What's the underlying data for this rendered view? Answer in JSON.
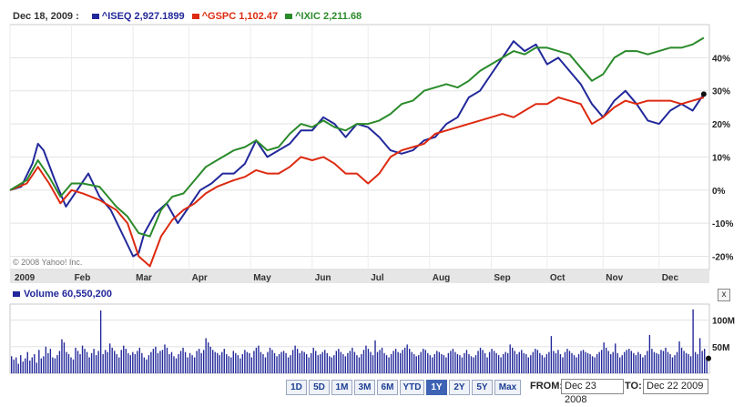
{
  "legend": {
    "date": "Dec 18, 2009 :",
    "items": [
      {
        "label": "^ISEQ 2,927.1899",
        "color": "#22289a"
      },
      {
        "label": "^GSPC 1,102.47",
        "color": "#dd2a10"
      },
      {
        "label": "^IXIC 2,211.68",
        "color": "#2a8a2a"
      }
    ]
  },
  "copyright": "© 2008 Yahoo! Inc.",
  "volume_legend": {
    "label": "Volume 60,550,200",
    "color": "#22289a"
  },
  "close_label": "x",
  "range_buttons": [
    {
      "label": "1D",
      "active": false
    },
    {
      "label": "5D",
      "active": false
    },
    {
      "label": "1M",
      "active": false
    },
    {
      "label": "3M",
      "active": false
    },
    {
      "label": "6M",
      "active": false
    },
    {
      "label": "YTD",
      "active": false
    },
    {
      "label": "1Y",
      "active": true
    },
    {
      "label": "2Y",
      "active": false
    },
    {
      "label": "5Y",
      "active": false
    },
    {
      "label": "Max",
      "active": false
    }
  ],
  "date_range": {
    "from_label": "FROM:",
    "from_value": "Dec 23 2008",
    "to_label": "TO:",
    "to_value": "Dec 22 2009"
  },
  "chart_data": [
    {
      "type": "line",
      "ylabel_unit": "%",
      "ylim": [
        -24,
        50
      ],
      "yticks": [
        {
          "value": 40,
          "label": "40%"
        },
        {
          "value": 30,
          "label": "30%"
        },
        {
          "value": 20,
          "label": "20%"
        },
        {
          "value": 10,
          "label": "10%"
        },
        {
          "value": 0,
          "label": "0%"
        },
        {
          "value": -10,
          "label": "-10%"
        },
        {
          "value": -20,
          "label": "-20%"
        }
      ],
      "x_axis_labels": [
        {
          "label": "2009",
          "x": 0
        },
        {
          "label": "Feb",
          "x": 1.1
        },
        {
          "label": "Mar",
          "x": 2.2
        },
        {
          "label": "Apr",
          "x": 3.2
        },
        {
          "label": "May",
          "x": 4.3
        },
        {
          "label": "Jun",
          "x": 5.4
        },
        {
          "label": "Jul",
          "x": 6.4
        },
        {
          "label": "Aug",
          "x": 7.5
        },
        {
          "label": "Sep",
          "x": 8.6
        },
        {
          "label": "Oct",
          "x": 9.6
        },
        {
          "label": "Nov",
          "x": 10.6
        },
        {
          "label": "Dec",
          "x": 11.6
        }
      ],
      "x_range": [
        0,
        12.5
      ],
      "grid": true,
      "series": [
        {
          "name": "^ISEQ",
          "color": "#22289a",
          "points": [
            [
              0,
              0
            ],
            [
              0.2,
              1
            ],
            [
              0.4,
              8
            ],
            [
              0.5,
              14
            ],
            [
              0.6,
              12
            ],
            [
              0.8,
              3
            ],
            [
              1.0,
              -5
            ],
            [
              1.2,
              0
            ],
            [
              1.4,
              5
            ],
            [
              1.6,
              -2
            ],
            [
              1.8,
              -6
            ],
            [
              2.0,
              -13
            ],
            [
              2.2,
              -20
            ],
            [
              2.3,
              -19
            ],
            [
              2.4,
              -13
            ],
            [
              2.6,
              -7
            ],
            [
              2.8,
              -4
            ],
            [
              3.0,
              -10
            ],
            [
              3.2,
              -5
            ],
            [
              3.4,
              0
            ],
            [
              3.6,
              2
            ],
            [
              3.8,
              5
            ],
            [
              4.0,
              5
            ],
            [
              4.2,
              8
            ],
            [
              4.4,
              15
            ],
            [
              4.6,
              10
            ],
            [
              4.8,
              12
            ],
            [
              5.0,
              14
            ],
            [
              5.2,
              18
            ],
            [
              5.4,
              18
            ],
            [
              5.6,
              22
            ],
            [
              5.8,
              20
            ],
            [
              6.0,
              16
            ],
            [
              6.2,
              20
            ],
            [
              6.4,
              19
            ],
            [
              6.6,
              16
            ],
            [
              6.8,
              12
            ],
            [
              7.0,
              11
            ],
            [
              7.2,
              12
            ],
            [
              7.4,
              15
            ],
            [
              7.6,
              16
            ],
            [
              7.8,
              20
            ],
            [
              8.0,
              22
            ],
            [
              8.2,
              28
            ],
            [
              8.4,
              30
            ],
            [
              8.6,
              35
            ],
            [
              8.8,
              40
            ],
            [
              9.0,
              45
            ],
            [
              9.2,
              42
            ],
            [
              9.4,
              44
            ],
            [
              9.6,
              38
            ],
            [
              9.8,
              40
            ],
            [
              10.0,
              36
            ],
            [
              10.2,
              32
            ],
            [
              10.4,
              26
            ],
            [
              10.6,
              22
            ],
            [
              10.8,
              27
            ],
            [
              11.0,
              30
            ],
            [
              11.2,
              26
            ],
            [
              11.4,
              21
            ],
            [
              11.6,
              20
            ],
            [
              11.8,
              24
            ],
            [
              12.0,
              26
            ],
            [
              12.2,
              24
            ],
            [
              12.4,
              29
            ]
          ]
        },
        {
          "name": "^GSPC",
          "color": "#dd2a10",
          "points": [
            [
              0,
              0
            ],
            [
              0.3,
              2
            ],
            [
              0.5,
              7
            ],
            [
              0.7,
              2
            ],
            [
              0.9,
              -4
            ],
            [
              1.1,
              0
            ],
            [
              1.3,
              -1
            ],
            [
              1.6,
              -3
            ],
            [
              1.9,
              -6
            ],
            [
              2.1,
              -10
            ],
            [
              2.3,
              -20
            ],
            [
              2.5,
              -23
            ],
            [
              2.7,
              -14
            ],
            [
              2.9,
              -9
            ],
            [
              3.1,
              -6
            ],
            [
              3.3,
              -4
            ],
            [
              3.5,
              -1
            ],
            [
              3.7,
              1
            ],
            [
              4.0,
              3
            ],
            [
              4.2,
              4
            ],
            [
              4.4,
              6
            ],
            [
              4.6,
              5
            ],
            [
              4.8,
              5
            ],
            [
              5.0,
              7
            ],
            [
              5.2,
              10
            ],
            [
              5.4,
              9
            ],
            [
              5.6,
              10
            ],
            [
              5.8,
              8
            ],
            [
              6.0,
              5
            ],
            [
              6.2,
              5
            ],
            [
              6.4,
              2
            ],
            [
              6.6,
              5
            ],
            [
              6.8,
              10
            ],
            [
              7.0,
              12
            ],
            [
              7.2,
              13
            ],
            [
              7.4,
              14
            ],
            [
              7.6,
              17
            ],
            [
              7.8,
              18
            ],
            [
              8.0,
              19
            ],
            [
              8.2,
              20
            ],
            [
              8.4,
              21
            ],
            [
              8.6,
              22
            ],
            [
              8.8,
              23
            ],
            [
              9.0,
              22
            ],
            [
              9.2,
              24
            ],
            [
              9.4,
              26
            ],
            [
              9.6,
              26
            ],
            [
              9.8,
              28
            ],
            [
              10.0,
              27
            ],
            [
              10.2,
              26
            ],
            [
              10.4,
              20
            ],
            [
              10.6,
              22
            ],
            [
              10.8,
              25
            ],
            [
              11.0,
              27
            ],
            [
              11.2,
              26
            ],
            [
              11.4,
              27
            ],
            [
              11.6,
              27
            ],
            [
              11.8,
              27
            ],
            [
              12.0,
              26
            ],
            [
              12.2,
              27
            ],
            [
              12.4,
              28
            ]
          ]
        },
        {
          "name": "^IXIC",
          "color": "#2a8a2a",
          "points": [
            [
              0,
              0
            ],
            [
              0.3,
              3
            ],
            [
              0.5,
              9
            ],
            [
              0.7,
              4
            ],
            [
              0.9,
              -2
            ],
            [
              1.1,
              2
            ],
            [
              1.3,
              2
            ],
            [
              1.6,
              1
            ],
            [
              1.9,
              -5
            ],
            [
              2.1,
              -8
            ],
            [
              2.3,
              -13
            ],
            [
              2.5,
              -14
            ],
            [
              2.7,
              -6
            ],
            [
              2.9,
              -2
            ],
            [
              3.1,
              -1
            ],
            [
              3.3,
              3
            ],
            [
              3.5,
              7
            ],
            [
              3.7,
              9
            ],
            [
              4.0,
              12
            ],
            [
              4.2,
              13
            ],
            [
              4.4,
              15
            ],
            [
              4.6,
              12
            ],
            [
              4.8,
              13
            ],
            [
              5.0,
              17
            ],
            [
              5.2,
              20
            ],
            [
              5.4,
              19
            ],
            [
              5.6,
              21
            ],
            [
              5.8,
              19
            ],
            [
              6.0,
              18
            ],
            [
              6.2,
              20
            ],
            [
              6.4,
              20
            ],
            [
              6.6,
              21
            ],
            [
              6.8,
              23
            ],
            [
              7.0,
              26
            ],
            [
              7.2,
              27
            ],
            [
              7.4,
              30
            ],
            [
              7.6,
              31
            ],
            [
              7.8,
              32
            ],
            [
              8.0,
              31
            ],
            [
              8.2,
              33
            ],
            [
              8.4,
              36
            ],
            [
              8.6,
              38
            ],
            [
              8.8,
              40
            ],
            [
              9.0,
              42
            ],
            [
              9.2,
              41
            ],
            [
              9.4,
              43
            ],
            [
              9.6,
              43
            ],
            [
              9.8,
              42
            ],
            [
              10.0,
              41
            ],
            [
              10.2,
              37
            ],
            [
              10.4,
              33
            ],
            [
              10.6,
              35
            ],
            [
              10.8,
              40
            ],
            [
              11.0,
              42
            ],
            [
              11.2,
              42
            ],
            [
              11.4,
              41
            ],
            [
              11.6,
              42
            ],
            [
              11.8,
              43
            ],
            [
              12.0,
              43
            ],
            [
              12.2,
              44
            ],
            [
              12.4,
              46
            ]
          ]
        }
      ]
    },
    {
      "type": "bar",
      "series_name": "Volume",
      "yticks": [
        {
          "value": 100,
          "label": "100M"
        },
        {
          "value": 50,
          "label": "50M"
        }
      ],
      "ylim": [
        0,
        130
      ],
      "color": "#22289a",
      "values": [
        32,
        26,
        30,
        18,
        34,
        22,
        28,
        40,
        24,
        30,
        36,
        20,
        44,
        28,
        32,
        50,
        38,
        46,
        30,
        28,
        34,
        42,
        64,
        58,
        40,
        36,
        30,
        26,
        48,
        42,
        36,
        52,
        46,
        40,
        30,
        38,
        46,
        34,
        42,
        118,
        36,
        44,
        40,
        56,
        48,
        42,
        36,
        30,
        44,
        52,
        46,
        38,
        34,
        40,
        36,
        42,
        48,
        38,
        30,
        26,
        34,
        40,
        46,
        50,
        38,
        42,
        44,
        54,
        48,
        36,
        40,
        32,
        28,
        36,
        42,
        48,
        40,
        30,
        38,
        34,
        30,
        42,
        46,
        38,
        44,
        66,
        58,
        50,
        44,
        40,
        38,
        34,
        40,
        46,
        36,
        32,
        30,
        42,
        38,
        34,
        28,
        36,
        44,
        40,
        38,
        30,
        42,
        48,
        52,
        40,
        36,
        30,
        40,
        48,
        44,
        38,
        32,
        36,
        40,
        42,
        38,
        30,
        34,
        44,
        52,
        46,
        38,
        42,
        40,
        36,
        30,
        38,
        48,
        42,
        34,
        36,
        40,
        44,
        38,
        32,
        30,
        34,
        42,
        46,
        40,
        36,
        32,
        38,
        42,
        48,
        40,
        34,
        30,
        36,
        44,
        52,
        46,
        40,
        34,
        62,
        40,
        44,
        48,
        38,
        34,
        30,
        36,
        42,
        46,
        40,
        38,
        44,
        48,
        54,
        46,
        40,
        36,
        32,
        34,
        40,
        46,
        44,
        38,
        34,
        30,
        36,
        42,
        40,
        36,
        34,
        30,
        38,
        42,
        46,
        40,
        36,
        34,
        30,
        38,
        44,
        36,
        32,
        30,
        34,
        42,
        48,
        44,
        38,
        30,
        40,
        46,
        42,
        38,
        34,
        30,
        36,
        40,
        38,
        54,
        48,
        42,
        36,
        40,
        44,
        38,
        36,
        30,
        34,
        40,
        46,
        44,
        38,
        34,
        30,
        36,
        40,
        70,
        42,
        38,
        44,
        36,
        30,
        40,
        46,
        42,
        38,
        34,
        30,
        36,
        42,
        44,
        40,
        38,
        36,
        32,
        30,
        36,
        40,
        44,
        58,
        48,
        42,
        36,
        40,
        56,
        38,
        30,
        34,
        40,
        44,
        46,
        42,
        38,
        34,
        40,
        36,
        30,
        34,
        42,
        72,
        46,
        40,
        38,
        36,
        44,
        42,
        48,
        40,
        36,
        30,
        34,
        40,
        60,
        48,
        42,
        38,
        36,
        32,
        120,
        40,
        36,
        66,
        42,
        46,
        28
      ]
    }
  ]
}
